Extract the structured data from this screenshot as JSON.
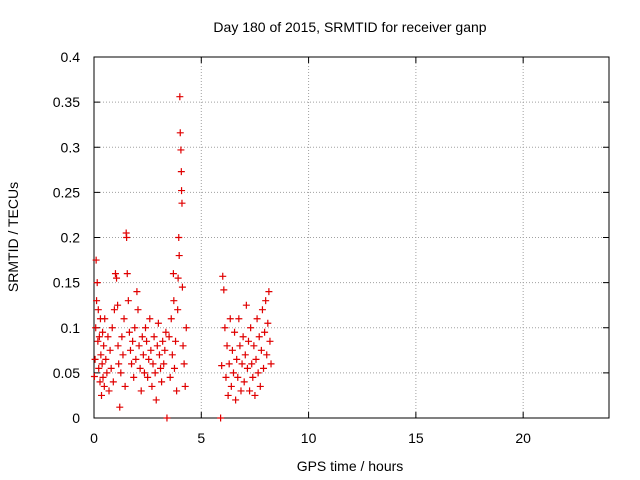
{
  "chart_data": {
    "type": "scatter",
    "title": "Day 180 of 2015, SRMTID for receiver ganp",
    "xlabel": "GPS time / hours",
    "ylabel": "SRMTID / TECUs",
    "xlim": [
      0,
      24
    ],
    "ylim": [
      0,
      0.4
    ],
    "x_ticks": [
      0,
      5,
      10,
      15,
      20
    ],
    "y_ticks": [
      0,
      0.05,
      0.1,
      0.15,
      0.2,
      0.25,
      0.3,
      0.35,
      0.4
    ],
    "x_tick_labels": [
      "0",
      "5",
      "10",
      "15",
      "20"
    ],
    "y_tick_labels": [
      "0",
      "0.05",
      "0.1",
      "0.15",
      "0.2",
      "0.25",
      "0.3",
      "0.35",
      "0.4"
    ],
    "grid": true,
    "grid_style": "dotted",
    "marker": "plus",
    "color": "#e00000",
    "series": [
      {
        "points": [
          [
            0.02,
            0.046
          ],
          [
            0.05,
            0.065
          ],
          [
            0.08,
            0.1
          ],
          [
            0.1,
            0.175
          ],
          [
            0.12,
            0.13
          ],
          [
            0.15,
            0.15
          ],
          [
            0.18,
            0.085
          ],
          [
            0.2,
            0.12
          ],
          [
            0.22,
            0.055
          ],
          [
            0.25,
            0.09
          ],
          [
            0.28,
            0.04
          ],
          [
            0.3,
            0.11
          ],
          [
            0.32,
            0.07
          ],
          [
            0.35,
            0.025
          ],
          [
            0.38,
            0.06
          ],
          [
            0.4,
            0.095
          ],
          [
            0.42,
            0.045
          ],
          [
            0.45,
            0.08
          ],
          [
            0.48,
            0.035
          ],
          [
            0.5,
            0.11
          ],
          [
            0.55,
            0.065
          ],
          [
            0.6,
            0.05
          ],
          [
            0.65,
            0.09
          ],
          [
            0.7,
            0.03
          ],
          [
            0.75,
            0.075
          ],
          [
            0.8,
            0.055
          ],
          [
            0.85,
            0.1
          ],
          [
            0.9,
            0.04
          ],
          [
            0.95,
            0.12
          ],
          [
            1.0,
            0.16
          ],
          [
            1.05,
            0.155
          ],
          [
            1.1,
            0.125
          ],
          [
            1.12,
            0.08
          ],
          [
            1.15,
            0.06
          ],
          [
            1.2,
            0.012
          ],
          [
            1.25,
            0.05
          ],
          [
            1.3,
            0.09
          ],
          [
            1.35,
            0.07
          ],
          [
            1.4,
            0.11
          ],
          [
            1.45,
            0.035
          ],
          [
            1.5,
            0.205
          ],
          [
            1.52,
            0.2
          ],
          [
            1.55,
            0.16
          ],
          [
            1.6,
            0.13
          ],
          [
            1.65,
            0.095
          ],
          [
            1.7,
            0.075
          ],
          [
            1.75,
            0.06
          ],
          [
            1.8,
            0.085
          ],
          [
            1.85,
            0.045
          ],
          [
            1.9,
            0.1
          ],
          [
            1.95,
            0.065
          ],
          [
            2.0,
            0.14
          ],
          [
            2.05,
            0.12
          ],
          [
            2.1,
            0.08
          ],
          [
            2.15,
            0.055
          ],
          [
            2.2,
            0.03
          ],
          [
            2.25,
            0.09
          ],
          [
            2.3,
            0.07
          ],
          [
            2.35,
            0.05
          ],
          [
            2.4,
            0.1
          ],
          [
            2.45,
            0.085
          ],
          [
            2.5,
            0.045
          ],
          [
            2.55,
            0.065
          ],
          [
            2.6,
            0.11
          ],
          [
            2.65,
            0.075
          ],
          [
            2.7,
            0.035
          ],
          [
            2.75,
            0.06
          ],
          [
            2.8,
            0.09
          ],
          [
            2.85,
            0.05
          ],
          [
            2.9,
            0.02
          ],
          [
            2.95,
            0.08
          ],
          [
            3.0,
            0.105
          ],
          [
            3.05,
            0.07
          ],
          [
            3.1,
            0.055
          ],
          [
            3.15,
            0.04
          ],
          [
            3.2,
            0.085
          ],
          [
            3.25,
            0.06
          ],
          [
            3.3,
            0.075
          ],
          [
            3.35,
            0.095
          ],
          [
            3.4,
            0.0
          ],
          [
            3.5,
            0.09
          ],
          [
            3.55,
            0.045
          ],
          [
            3.6,
            0.11
          ],
          [
            3.65,
            0.07
          ],
          [
            3.7,
            0.16
          ],
          [
            3.72,
            0.13
          ],
          [
            3.75,
            0.055
          ],
          [
            3.8,
            0.085
          ],
          [
            3.85,
            0.03
          ],
          [
            3.9,
            0.12
          ],
          [
            3.92,
            0.155
          ],
          [
            3.95,
            0.2
          ],
          [
            3.97,
            0.18
          ],
          [
            4.0,
            0.356
          ],
          [
            4.02,
            0.316
          ],
          [
            4.05,
            0.297
          ],
          [
            4.07,
            0.273
          ],
          [
            4.08,
            0.252
          ],
          [
            4.1,
            0.238
          ],
          [
            4.12,
            0.145
          ],
          [
            4.15,
            0.08
          ],
          [
            4.2,
            0.06
          ],
          [
            4.25,
            0.035
          ],
          [
            4.3,
            0.1
          ],
          [
            5.9,
            0.0
          ],
          [
            5.95,
            0.058
          ],
          [
            6.0,
            0.157
          ],
          [
            6.05,
            0.142
          ],
          [
            6.1,
            0.1
          ],
          [
            6.15,
            0.045
          ],
          [
            6.2,
            0.08
          ],
          [
            6.25,
            0.025
          ],
          [
            6.3,
            0.06
          ],
          [
            6.35,
            0.11
          ],
          [
            6.4,
            0.035
          ],
          [
            6.45,
            0.075
          ],
          [
            6.5,
            0.05
          ],
          [
            6.55,
            0.095
          ],
          [
            6.6,
            0.02
          ],
          [
            6.65,
            0.065
          ],
          [
            6.7,
            0.045
          ],
          [
            6.75,
            0.11
          ],
          [
            6.8,
            0.08
          ],
          [
            6.85,
            0.03
          ],
          [
            6.9,
            0.06
          ],
          [
            6.95,
            0.09
          ],
          [
            7.0,
            0.04
          ],
          [
            7.05,
            0.07
          ],
          [
            7.1,
            0.125
          ],
          [
            7.15,
            0.055
          ],
          [
            7.2,
            0.085
          ],
          [
            7.25,
            0.03
          ],
          [
            7.3,
            0.1
          ],
          [
            7.35,
            0.06
          ],
          [
            7.4,
            0.045
          ],
          [
            7.45,
            0.08
          ],
          [
            7.5,
            0.025
          ],
          [
            7.55,
            0.065
          ],
          [
            7.6,
            0.11
          ],
          [
            7.65,
            0.05
          ],
          [
            7.7,
            0.09
          ],
          [
            7.75,
            0.035
          ],
          [
            7.8,
            0.075
          ],
          [
            7.85,
            0.12
          ],
          [
            7.9,
            0.055
          ],
          [
            7.95,
            0.095
          ],
          [
            8.0,
            0.13
          ],
          [
            8.05,
            0.07
          ],
          [
            8.1,
            0.105
          ],
          [
            8.15,
            0.14
          ],
          [
            8.2,
            0.085
          ],
          [
            8.25,
            0.06
          ]
        ]
      }
    ]
  }
}
